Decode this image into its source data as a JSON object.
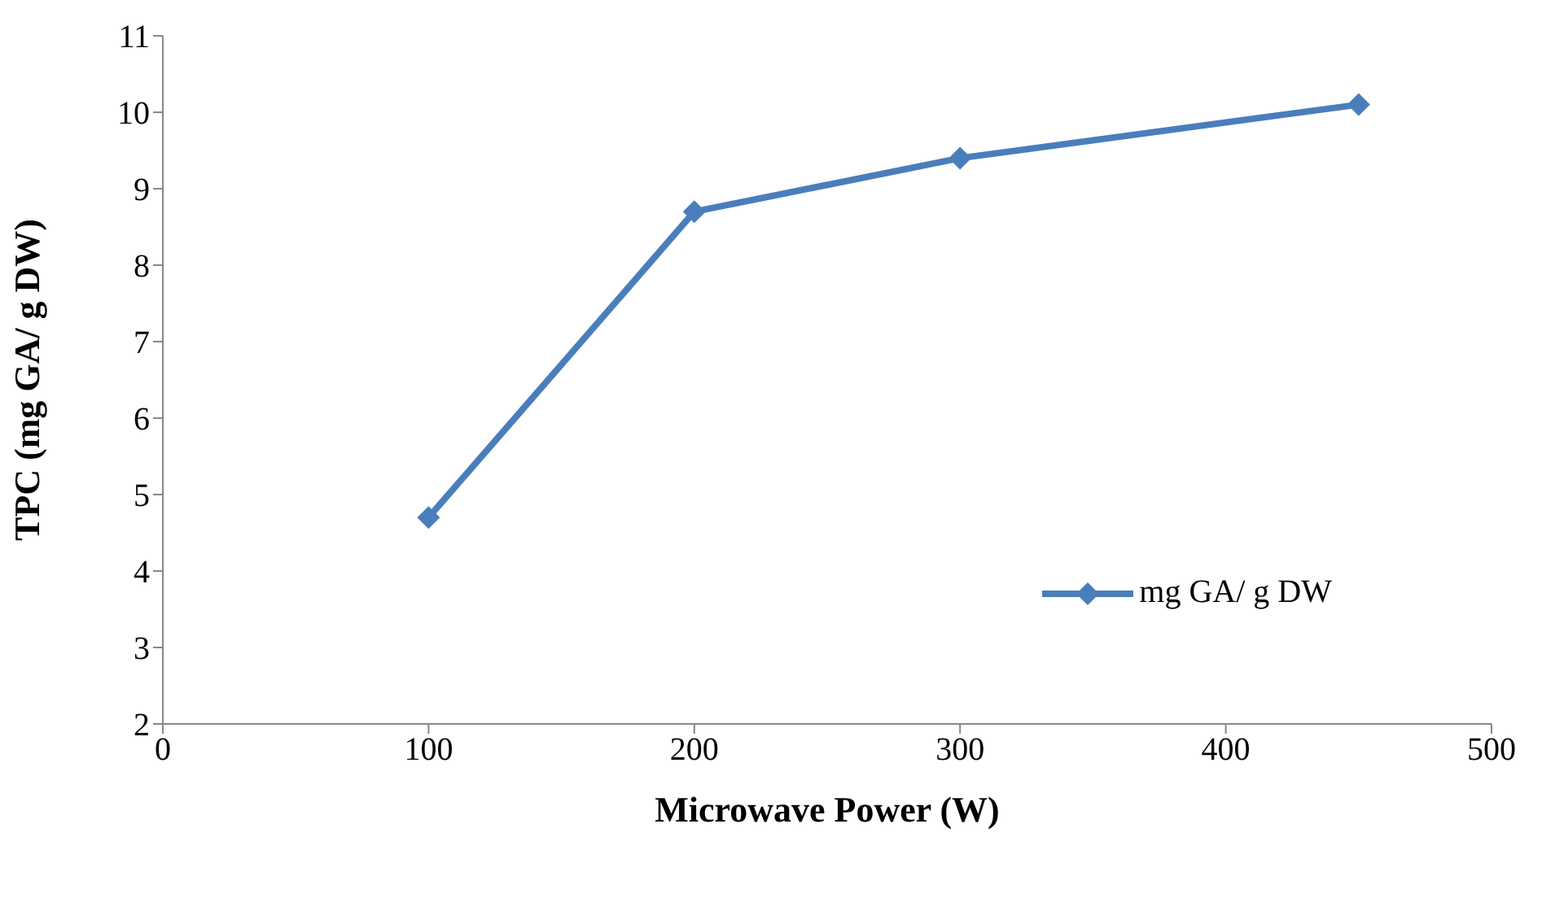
{
  "chart_data": {
    "type": "line",
    "xlabel": "Microwave Power (W)",
    "ylabel": "TPC (mg GA/ g DW)",
    "x": [
      100,
      200,
      300,
      450
    ],
    "series": [
      {
        "name": "mg GA/ g DW",
        "color": "#4a7ebb",
        "values": [
          4.7,
          8.7,
          9.4,
          10.1
        ]
      }
    ],
    "xlim": [
      0,
      500
    ],
    "xticks": [
      0,
      100,
      200,
      300,
      400,
      500
    ],
    "ylim": [
      2,
      11
    ],
    "yticks": [
      2,
      3,
      4,
      5,
      6,
      7,
      8,
      9,
      10,
      11
    ],
    "grid": false,
    "legend": "right",
    "marker": "diamond",
    "line_style": "solid"
  }
}
